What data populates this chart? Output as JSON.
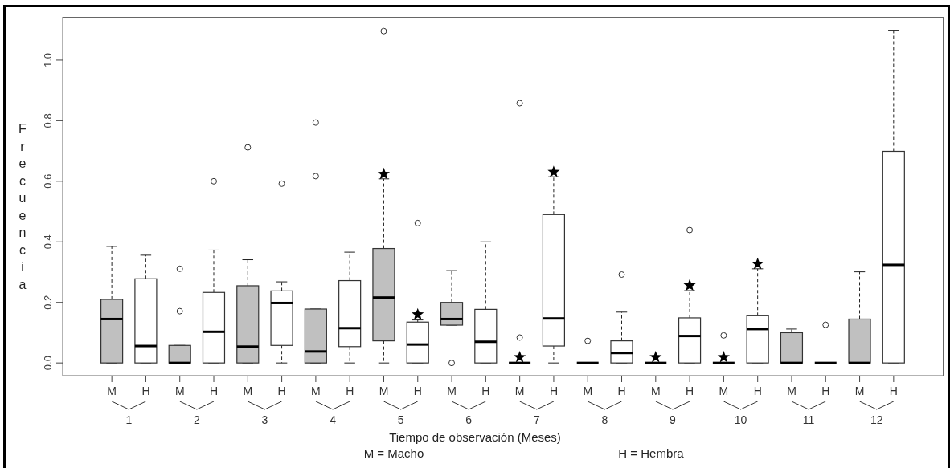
{
  "chart_data": {
    "type": "box",
    "xlabel": "Tiempo de observación (Meses)",
    "ylabel": "Frecuencia",
    "categories": [
      "M",
      "H",
      "M",
      "H",
      "M",
      "H",
      "M",
      "H",
      "M",
      "H",
      "M",
      "H",
      "M",
      "H",
      "M",
      "H",
      "M",
      "H",
      "M",
      "H",
      "M",
      "H",
      "M",
      "H"
    ],
    "colors": [
      "#c0c0c0",
      "#ffffff",
      "#c0c0c0",
      "#ffffff",
      "#c0c0c0",
      "#ffffff",
      "#c0c0c0",
      "#ffffff",
      "#c0c0c0",
      "#ffffff",
      "#c0c0c0",
      "#ffffff",
      "#000000",
      "#ffffff",
      "#000000",
      "#ffffff",
      "#000000",
      "#ffffff",
      "#000000",
      "#ffffff",
      "#c0c0c0",
      "#000000",
      "#c0c0c0",
      "#ffffff"
    ],
    "boxes": [
      {
        "low": 0,
        "q1": 0,
        "median": 0.145,
        "q3": 0.21,
        "high": 0.385
      },
      {
        "low": 0,
        "q1": 0,
        "median": 0.056,
        "q3": 0.278,
        "high": 0.356
      },
      {
        "low": 0,
        "q1": 0,
        "median": 0,
        "q3": 0.058,
        "high": 0.058,
        "outliers": [
          0.311,
          0.171
        ]
      },
      {
        "low": 0,
        "q1": 0,
        "median": 0.103,
        "q3": 0.233,
        "high": 0.373,
        "outliers": [
          0.6
        ]
      },
      {
        "low": 0,
        "q1": 0,
        "median": 0.054,
        "q3": 0.255,
        "high": 0.341,
        "outliers": [
          0.712
        ]
      },
      {
        "low": 0,
        "q1": 0.058,
        "median": 0.198,
        "q3": 0.238,
        "high": 0.268,
        "outliers": [
          0.592
        ]
      },
      {
        "low": 0,
        "q1": 0,
        "median": 0.038,
        "q3": 0.178,
        "high": 0.178,
        "outliers": [
          0.794,
          0.617
        ]
      },
      {
        "low": 0,
        "q1": 0.054,
        "median": 0.115,
        "q3": 0.272,
        "high": 0.366
      },
      {
        "low": 0,
        "q1": 0.073,
        "median": 0.216,
        "q3": 0.378,
        "high": 0.608,
        "outliers": [
          1.096
        ]
      },
      {
        "low": 0,
        "q1": 0,
        "median": 0.061,
        "q3": 0.135,
        "high": 0.142,
        "outliers": [
          0.462
        ]
      },
      {
        "low": 0.125,
        "q1": 0.125,
        "median": 0.145,
        "q3": 0.2,
        "high": 0.305,
        "outliers": [
          0
        ]
      },
      {
        "low": 0,
        "q1": 0,
        "median": 0.07,
        "q3": 0.177,
        "high": 0.4
      },
      {
        "low": 0,
        "q1": 0,
        "median": 0,
        "q3": 0,
        "high": 0,
        "outliers": [
          0.858,
          0.084
        ]
      },
      {
        "low": 0,
        "q1": 0.056,
        "median": 0.147,
        "q3": 0.49,
        "high": 0.615
      },
      {
        "low": 0,
        "q1": 0,
        "median": 0,
        "q3": 0,
        "high": 0,
        "outliers": [
          0.073
        ]
      },
      {
        "low": 0,
        "q1": 0,
        "median": 0.033,
        "q3": 0.073,
        "high": 0.168,
        "outliers": [
          0.292
        ]
      },
      {
        "low": 0,
        "q1": 0,
        "median": 0,
        "q3": 0,
        "high": 0
      },
      {
        "low": 0,
        "q1": 0,
        "median": 0.089,
        "q3": 0.149,
        "high": 0.239,
        "outliers": [
          0.439
        ]
      },
      {
        "low": 0,
        "q1": 0,
        "median": 0,
        "q3": 0,
        "high": 0,
        "outliers": [
          0.091
        ]
      },
      {
        "low": 0,
        "q1": 0,
        "median": 0.112,
        "q3": 0.156,
        "high": 0.311
      },
      {
        "low": 0,
        "q1": 0,
        "median": 0,
        "q3": 0.1,
        "high": 0.112
      },
      {
        "low": 0,
        "q1": 0,
        "median": 0,
        "q3": 0,
        "high": 0,
        "outliers": [
          0.126
        ]
      },
      {
        "low": 0,
        "q1": 0,
        "median": 0,
        "q3": 0.145,
        "high": 0.301
      },
      {
        "low": 0,
        "q1": 0,
        "median": 0.324,
        "q3": 0.699,
        "high": 1.099
      }
    ],
    "series": [
      {
        "type": "scatter",
        "marker": "star",
        "color": "#000000",
        "values": [
          null,
          null,
          null,
          null,
          null,
          null,
          null,
          null,
          0.624,
          0.16,
          null,
          null,
          0.019,
          0.631,
          null,
          null,
          0.019,
          0.256,
          0.019,
          0.327,
          null,
          null,
          null,
          null
        ]
      }
    ],
    "ylim": [
      -0.042,
      1.143
    ],
    "yticks": [
      {
        "value": 0,
        "label": "0.0"
      },
      {
        "value": 0.2,
        "label": "0.2"
      },
      {
        "value": 0.4,
        "label": "0.4"
      },
      {
        "value": 0.6,
        "label": "0.6"
      },
      {
        "value": 0.8,
        "label": "0.8"
      },
      {
        "value": 1,
        "label": "1.0"
      }
    ],
    "annotations": [
      "1",
      "2",
      "3",
      "4",
      "5",
      "6",
      "7",
      "8",
      "9",
      "10",
      "11",
      "12",
      "M = Macho",
      "H = Hembra"
    ]
  }
}
